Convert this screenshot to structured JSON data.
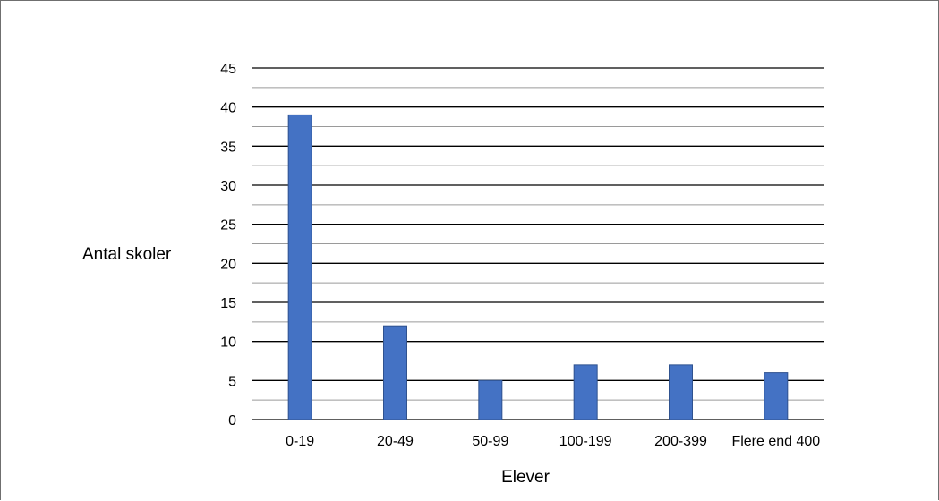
{
  "chart_data": {
    "type": "bar",
    "categories": [
      "0-19",
      "20-49",
      "50-99",
      "100-199",
      "200-399",
      "Flere end 400"
    ],
    "values": [
      39,
      12,
      5,
      7,
      7,
      6
    ],
    "xlabel": "Elever",
    "ylabel": "Antal skoler",
    "ylim": [
      0,
      45
    ],
    "yticks": [
      0,
      5,
      10,
      15,
      20,
      25,
      30,
      35,
      40,
      45
    ],
    "grid": true,
    "legend": "none",
    "colors": {
      "bar": "#4472C4",
      "bar_edge": "#2F528F",
      "grid_major": "#000000",
      "grid_minor": "#9a9a9a"
    }
  }
}
